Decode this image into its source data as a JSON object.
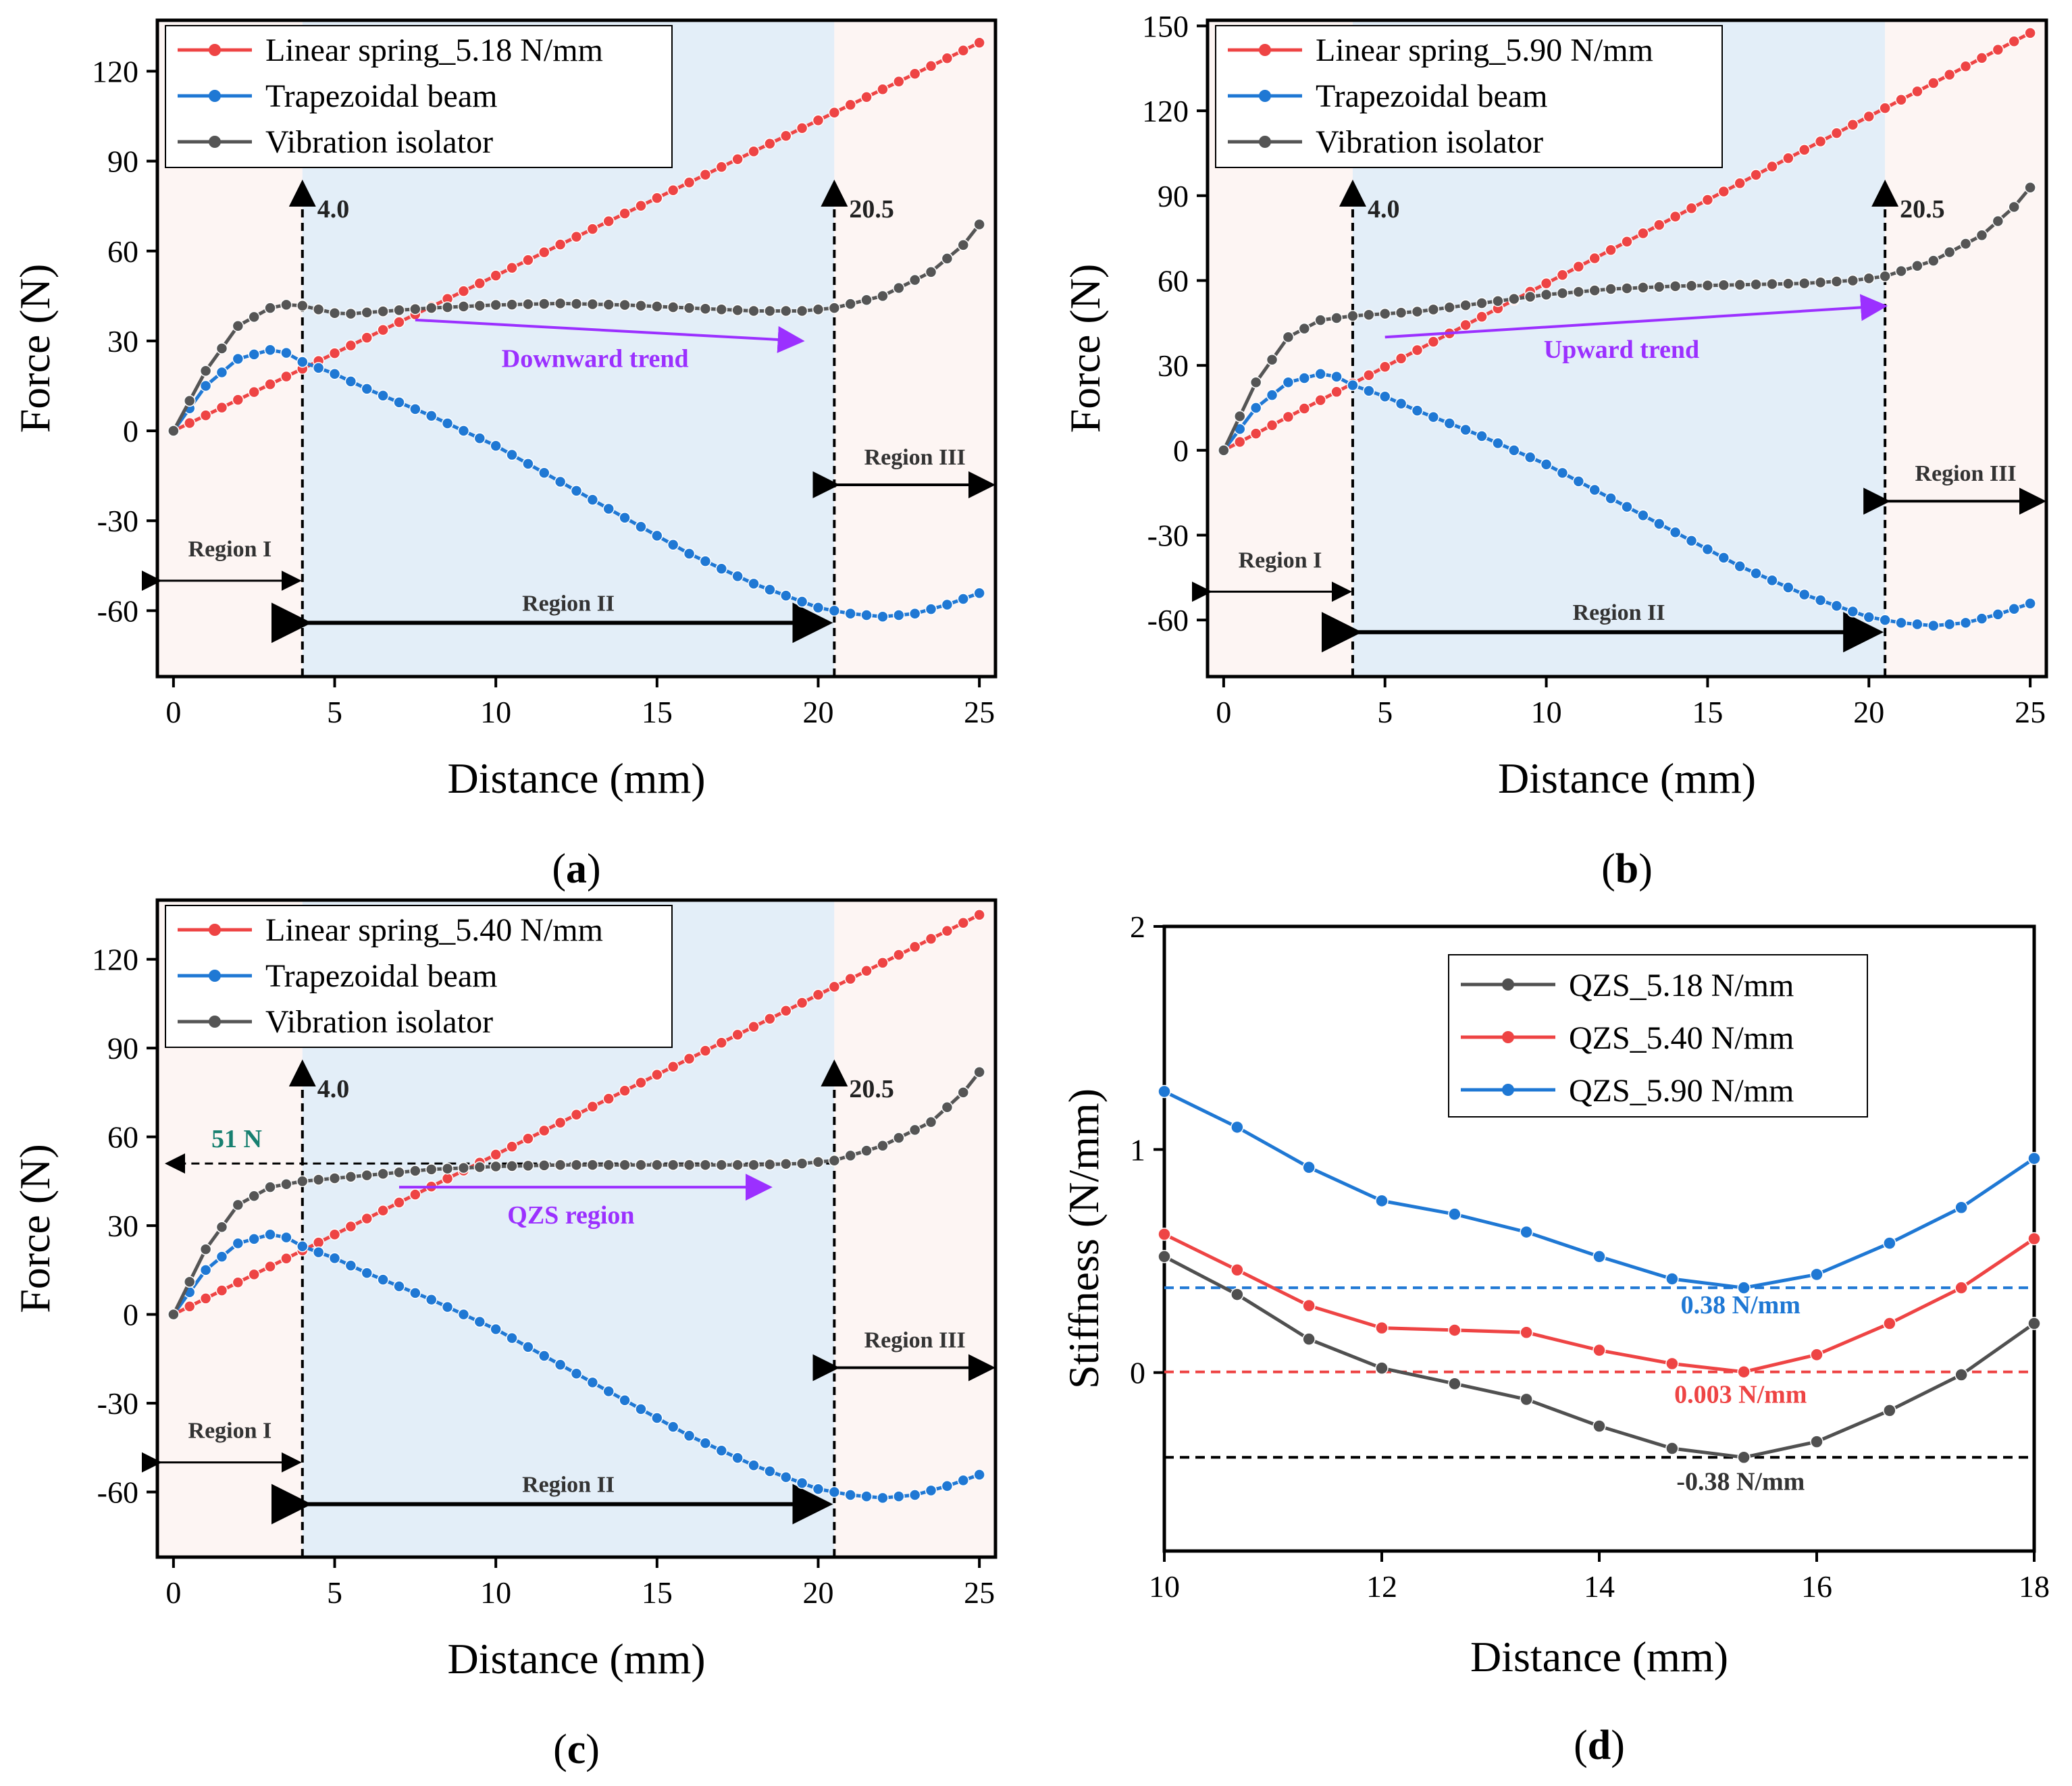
{
  "colors": {
    "linear": "#ee4444",
    "beam": "#1f78d4",
    "isolator": "#555555",
    "qzs518": "#505050",
    "qzs540": "#ee4444",
    "qzs590": "#1f78d4",
    "regionI_bg": "#fdf5f3",
    "regionII_bg": "#e3eef8",
    "regionIII_bg": "#fdf5f3",
    "trend": "#9b30ff",
    "teal": "#188070"
  },
  "chart_data": [
    {
      "panel": "a",
      "type": "line",
      "panel_label": "(a)",
      "panel_letter": "a",
      "xlabel": "Distance (mm)",
      "ylabel": "Force (N)",
      "xlim": [
        -0.5,
        25.5
      ],
      "ylim": [
        -82,
        137
      ],
      "xticks": [
        0,
        5,
        10,
        15,
        20,
        25
      ],
      "yticks": [
        -60,
        -30,
        0,
        30,
        60,
        90,
        120
      ],
      "spring_k": 5.18,
      "legend": [
        "Linear spring_5.18 N/mm",
        "Trapezoidal beam",
        "Vibration isolator"
      ],
      "boundary1": "4.0",
      "boundary2": "20.5",
      "region_labels": [
        "Region I",
        "Region II",
        "Region III"
      ],
      "annotation": "Downward trend",
      "annotation_arrow": {
        "x1": 7.5,
        "y1": 37,
        "x2": 19.5,
        "y2": 30
      },
      "isolator_profile": [
        [
          0,
          0
        ],
        [
          1,
          20
        ],
        [
          2,
          35
        ],
        [
          3,
          41
        ],
        [
          3.7,
          42.5
        ],
        [
          4.5,
          40.5
        ],
        [
          5.2,
          38.8
        ],
        [
          6,
          39.5
        ],
        [
          8,
          41
        ],
        [
          10,
          42
        ],
        [
          12,
          42.5
        ],
        [
          14,
          42
        ],
        [
          16,
          41
        ],
        [
          18,
          40
        ],
        [
          19.5,
          40
        ],
        [
          20.5,
          41
        ],
        [
          22,
          45
        ],
        [
          23.5,
          53
        ],
        [
          24.5,
          62
        ],
        [
          25.3,
          73
        ]
      ]
    },
    {
      "panel": "b",
      "type": "line",
      "panel_label": "(b)",
      "panel_letter": "b",
      "xlabel": "Distance (mm)",
      "ylabel": "Force (N)",
      "xlim": [
        -0.5,
        25.5
      ],
      "ylim": [
        -80,
        152
      ],
      "xticks": [
        0,
        5,
        10,
        15,
        20,
        25
      ],
      "yticks": [
        -60,
        -30,
        0,
        30,
        60,
        90,
        120,
        150
      ],
      "spring_k": 5.9,
      "legend": [
        "Linear spring_5.90 N/mm",
        "Trapezoidal beam",
        "Vibration isolator"
      ],
      "boundary1": "4.0",
      "boundary2": "20.5",
      "region_labels": [
        "Region I",
        "Region II",
        "Region III"
      ],
      "annotation": "Upward trend",
      "annotation_arrow": {
        "x1": 5,
        "y1": 40,
        "x2": 20.5,
        "y2": 51
      },
      "isolator_profile": [
        [
          0,
          0
        ],
        [
          1,
          24
        ],
        [
          2,
          40
        ],
        [
          3,
          46
        ],
        [
          4,
          47.5
        ],
        [
          6,
          49
        ],
        [
          8,
          52
        ],
        [
          10,
          55
        ],
        [
          12,
          57
        ],
        [
          14,
          58
        ],
        [
          16,
          58.5
        ],
        [
          18,
          59
        ],
        [
          19.5,
          60
        ],
        [
          20.5,
          61.5
        ],
        [
          22,
          67
        ],
        [
          23.5,
          76
        ],
        [
          24.5,
          86
        ],
        [
          25.3,
          97
        ]
      ]
    },
    {
      "panel": "c",
      "type": "line",
      "panel_label": "(c)",
      "panel_letter": "c",
      "xlabel": "Distance (mm)",
      "ylabel": "Force (N)",
      "xlim": [
        -0.5,
        25.5
      ],
      "ylim": [
        -82,
        140
      ],
      "xticks": [
        0,
        5,
        10,
        15,
        20,
        25
      ],
      "yticks": [
        -60,
        -30,
        0,
        30,
        60,
        90,
        120
      ],
      "spring_k": 5.4,
      "legend": [
        "Linear spring_5.40 N/mm",
        "Trapezoidal beam",
        "Vibration isolator"
      ],
      "boundary1": "4.0",
      "boundary2": "20.5",
      "region_labels": [
        "Region I",
        "Region II",
        "Region III"
      ],
      "annotation": "QZS region",
      "annotation_arrow": {
        "x1": 7,
        "y1": 43,
        "x2": 18.5,
        "y2": 43
      },
      "force_line_label": "51 N",
      "force_line_value": 51,
      "isolator_profile": [
        [
          0,
          0
        ],
        [
          1,
          22
        ],
        [
          2,
          37
        ],
        [
          3,
          43
        ],
        [
          4,
          45
        ],
        [
          6,
          47
        ],
        [
          8,
          49
        ],
        [
          10,
          50
        ],
        [
          12,
          50.5
        ],
        [
          14,
          50.5
        ],
        [
          16,
          50.5
        ],
        [
          18,
          50.5
        ],
        [
          19.5,
          51
        ],
        [
          20.5,
          52
        ],
        [
          22,
          57
        ],
        [
          23.5,
          65
        ],
        [
          24.5,
          75
        ],
        [
          25.3,
          86
        ]
      ]
    },
    {
      "panel": "d",
      "type": "line",
      "panel_label": "(d)",
      "panel_letter": "d",
      "xlabel": "Distance (mm)",
      "ylabel": "Stiffness (N/mm)",
      "xlim": [
        10,
        18
      ],
      "ylim": [
        -0.8,
        2
      ],
      "xticks": [
        10,
        12,
        14,
        16,
        18
      ],
      "yticks": [
        0,
        1,
        2
      ],
      "legend": [
        "QZS_5.18 N/mm",
        "QZS_5.40 N/mm",
        "QZS_5.90 N/mm"
      ],
      "reference_lines": [
        {
          "value": 0.38,
          "label": "0.38 N/mm",
          "color": "#1f78d4"
        },
        {
          "value": 0.003,
          "label": "0.003 N/mm",
          "color": "#ee4444"
        },
        {
          "value": -0.38,
          "label": "-0.38 N/mm",
          "color": "#000000"
        }
      ],
      "series": [
        {
          "name": "QZS_5.18 N/mm",
          "x": [
            10,
            10.67,
            11.33,
            12,
            12.67,
            13.33,
            14,
            14.67,
            15.33,
            16,
            16.67,
            17.33,
            18
          ],
          "y": [
            0.52,
            0.35,
            0.15,
            0.02,
            -0.05,
            -0.12,
            -0.24,
            -0.34,
            -0.38,
            -0.31,
            -0.17,
            -0.01,
            0.22
          ]
        },
        {
          "name": "QZS_5.40 N/mm",
          "x": [
            10,
            10.67,
            11.33,
            12,
            12.67,
            13.33,
            14,
            14.67,
            15.33,
            16,
            16.67,
            17.33,
            18
          ],
          "y": [
            0.62,
            0.46,
            0.3,
            0.2,
            0.19,
            0.18,
            0.1,
            0.04,
            0.003,
            0.08,
            0.22,
            0.38,
            0.6
          ]
        },
        {
          "name": "QZS_5.90 N/mm",
          "x": [
            10,
            10.67,
            11.33,
            12,
            12.67,
            13.33,
            14,
            14.67,
            15.33,
            16,
            16.67,
            17.33,
            18
          ],
          "y": [
            1.26,
            1.1,
            0.92,
            0.77,
            0.71,
            0.63,
            0.52,
            0.42,
            0.38,
            0.44,
            0.58,
            0.74,
            0.96
          ]
        }
      ]
    }
  ]
}
